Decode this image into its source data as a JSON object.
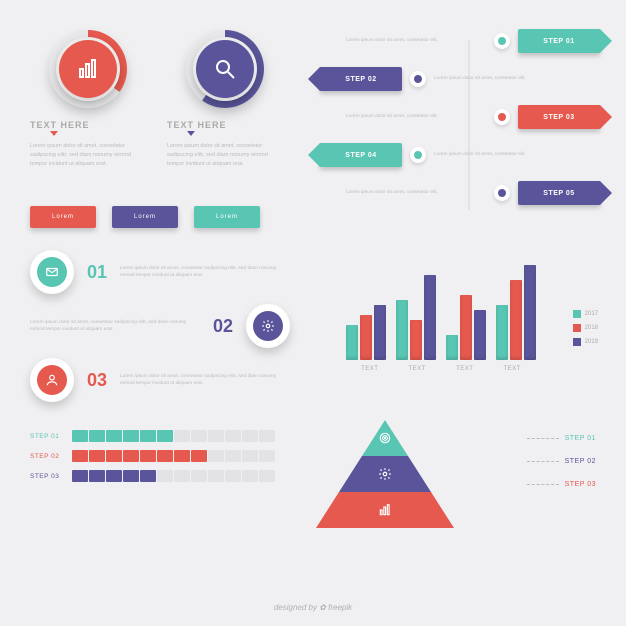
{
  "palette": {
    "teal": "#59c5b3",
    "red": "#e5594e",
    "purple": "#5a559a",
    "bg": "#f0f0f2",
    "textMuted": "#b5b5bb"
  },
  "lorem_short": "Lorem ipsum dolor sit amet, consetetur elit.",
  "lorem_block": "Lorem ipsum dolor sit amet, consetetur sadipscing elitr, sed diam nonumy eirmod tempor invidunt ut aliquam erat.",
  "topCircles": [
    {
      "title": "TEXT HERE",
      "progress": 0.35,
      "arcColor": "#e5594e",
      "innerColor": "#e5594e",
      "icon": "bars"
    },
    {
      "title": "TEXT HERE",
      "progress": 0.6,
      "arcColor": "#5a559a",
      "innerColor": "#5a559a",
      "icon": "search"
    }
  ],
  "pillButtons": [
    {
      "label": "Lorem",
      "color": "#e5594e"
    },
    {
      "label": "Lorem",
      "color": "#5a559a"
    },
    {
      "label": "Lorem",
      "color": "#59c5b3"
    }
  ],
  "steps": [
    {
      "n": "01",
      "label": "STEP 01",
      "color": "#59c5b3",
      "side": "right"
    },
    {
      "n": "02",
      "label": "STEP 02",
      "color": "#5a559a",
      "side": "left"
    },
    {
      "n": "03",
      "label": "STEP 03",
      "color": "#e5594e",
      "side": "right"
    },
    {
      "n": "04",
      "label": "STEP 04",
      "color": "#59c5b3",
      "side": "left"
    },
    {
      "n": "05",
      "label": "STEP 05",
      "color": "#5a559a",
      "side": "right"
    }
  ],
  "numbered": [
    {
      "n": "01",
      "color": "#59c5b3",
      "icon": "mail"
    },
    {
      "n": "02",
      "color": "#5a559a",
      "icon": "gear"
    },
    {
      "n": "03",
      "color": "#e5594e",
      "icon": "user"
    }
  ],
  "barChart": {
    "type": "bar",
    "categories": [
      "TEXT",
      "TEXT",
      "TEXT",
      "TEXT"
    ],
    "series": [
      {
        "name": "2017",
        "color": "#59c5b3",
        "values": [
          35,
          60,
          25,
          55
        ]
      },
      {
        "name": "2018",
        "color": "#e5594e",
        "values": [
          45,
          40,
          65,
          80
        ]
      },
      {
        "name": "2019",
        "color": "#5a559a",
        "values": [
          55,
          85,
          50,
          95
        ]
      }
    ],
    "ylim": [
      0,
      100
    ]
  },
  "progress": [
    {
      "label": "STEP 01",
      "color": "#59c5b3",
      "filled": 6,
      "total": 12
    },
    {
      "label": "STEP 02",
      "color": "#e5594e",
      "filled": 8,
      "total": 12
    },
    {
      "label": "STEP 03",
      "color": "#5a559a",
      "filled": 5,
      "total": 12
    }
  ],
  "pyramid": {
    "layers": [
      {
        "color": "#59c5b3",
        "icon": "target"
      },
      {
        "color": "#5a559a",
        "icon": "gear"
      },
      {
        "color": "#e5594e",
        "icon": "bars"
      }
    ],
    "steps": [
      {
        "label": "STEP 01",
        "color": "#59c5b3"
      },
      {
        "label": "STEP 02",
        "color": "#5a559a"
      },
      {
        "label": "STEP 03",
        "color": "#e5594e"
      }
    ]
  },
  "credit": "designed by ✿ freepik"
}
